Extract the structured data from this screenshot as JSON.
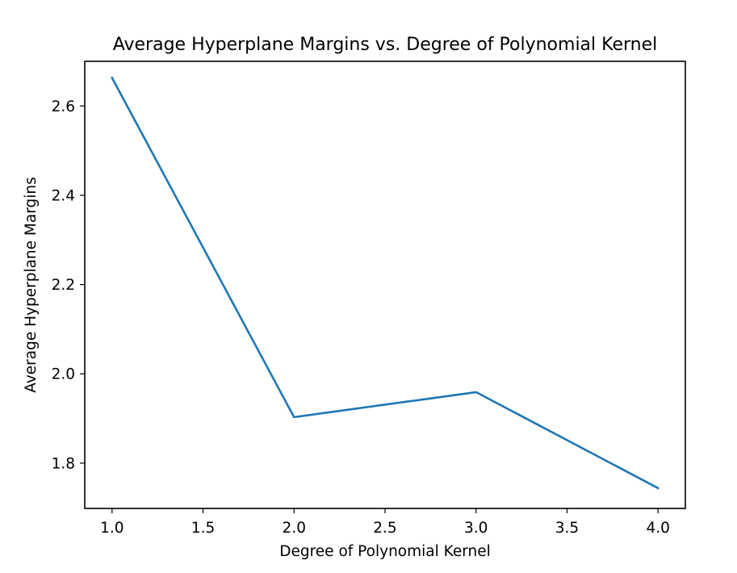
{
  "chart_data": {
    "type": "line",
    "title": "Average Hyperplane Margins vs. Degree of Polynomial Kernel",
    "xlabel": "Degree of Polynomial Kernel",
    "ylabel": "Average Hyperplane Margins",
    "xlim": [
      0.85,
      4.15
    ],
    "ylim": [
      1.6985,
      2.7
    ],
    "xticks": [
      1.0,
      1.5,
      2.0,
      2.5,
      3.0,
      3.5,
      4.0
    ],
    "xtick_labels": [
      "1.0",
      "1.5",
      "2.0",
      "2.5",
      "3.0",
      "3.5",
      "4.0"
    ],
    "yticks": [
      1.8,
      2.0,
      2.2,
      2.4,
      2.6
    ],
    "ytick_labels": [
      "1.8",
      "2.0",
      "2.2",
      "2.4",
      "2.6"
    ],
    "grid": false,
    "legend": false,
    "series": [
      {
        "x": [
          1.0,
          2.0,
          3.0,
          4.0
        ],
        "y": [
          2.663,
          1.903,
          1.959,
          1.744
        ],
        "color": "#1f77b4"
      }
    ]
  }
}
